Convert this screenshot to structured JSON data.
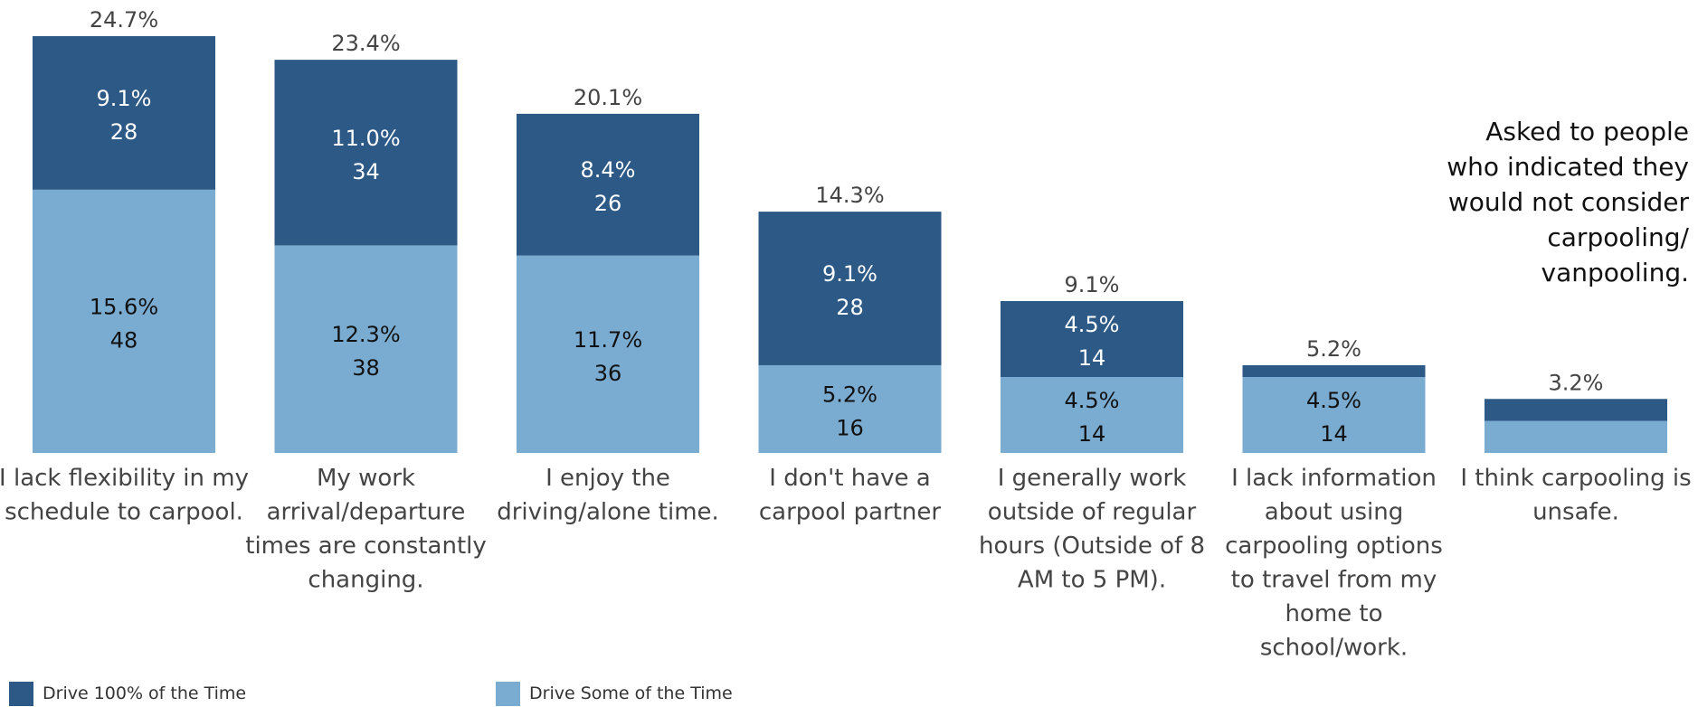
{
  "note": [
    "Asked to people",
    "who indicated they",
    "would not consider",
    "carpooling/",
    "vanpooling."
  ],
  "colors": {
    "drive100": "#2c5985",
    "driveSome": "#7aabd0"
  },
  "legend": [
    {
      "label": "Drive 100% of the Time",
      "color": "#2c5985"
    },
    {
      "label": "Drive Some of the Time",
      "color": "#7aabd0"
    }
  ],
  "chart_data": {
    "type": "bar",
    "stacked": true,
    "ylim": [
      0,
      25
    ],
    "categories": [
      [
        "I lack flexibility in my",
        "schedule to carpool."
      ],
      [
        "My work",
        "arrival/departure",
        "times are constantly",
        "changing."
      ],
      [
        "I enjoy the",
        "driving/alone time."
      ],
      [
        "I don't have a",
        "carpool partner"
      ],
      [
        "I generally work",
        "outside of regular",
        "hours (Outside of 8",
        "AM to 5 PM)."
      ],
      [
        "I lack information",
        "about using",
        "carpooling options",
        "to travel from my",
        "home to",
        "school/work."
      ],
      [
        "I think carpooling is",
        "unsafe."
      ]
    ],
    "totals": [
      "24.7%",
      "23.4%",
      "20.1%",
      "14.3%",
      "9.1%",
      "5.2%",
      "3.2%"
    ],
    "series": [
      {
        "name": "Drive Some of the Time",
        "color": "#7aabd0",
        "values": [
          15.6,
          12.3,
          11.7,
          5.2,
          4.5,
          4.5,
          1.9
        ],
        "labels": [
          [
            "15.6%",
            "48"
          ],
          [
            "12.3%",
            "38"
          ],
          [
            "11.7%",
            "36"
          ],
          [
            "5.2%",
            "16"
          ],
          [
            "4.5%",
            "14"
          ],
          [
            "4.5%",
            "14"
          ],
          null
        ]
      },
      {
        "name": "Drive 100% of the Time",
        "color": "#2c5985",
        "values": [
          9.1,
          11.0,
          8.4,
          9.1,
          4.5,
          0.7,
          1.3
        ],
        "labels": [
          [
            "9.1%",
            "28"
          ],
          [
            "11.0%",
            "34"
          ],
          [
            "8.4%",
            "26"
          ],
          [
            "9.1%",
            "28"
          ],
          [
            "4.5%",
            "14"
          ],
          null,
          null
        ]
      }
    ]
  }
}
